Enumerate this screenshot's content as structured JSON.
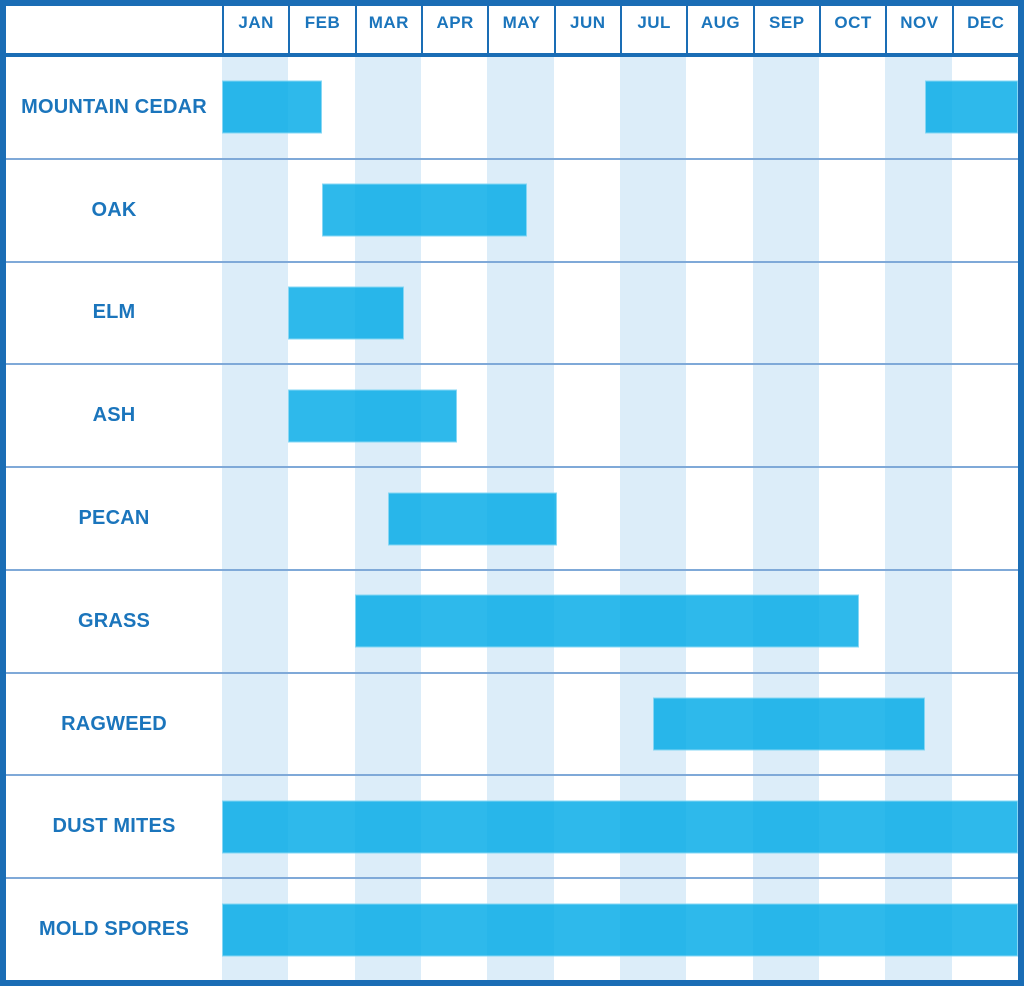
{
  "colors": {
    "border_blue": "#1A6DB5",
    "text_blue": "#1B75BC",
    "divider_blue": "#7FA9D8",
    "stripe_blue": "#DCEDF9",
    "bar_blue": "rgba(0, 169, 230, 0.82)"
  },
  "chart_data": {
    "type": "bar",
    "subtype": "gantt-month-ranges",
    "description": "Allergy season calendar: horizontal bars mark the months each allergen is active. Units are months, 0 = Jan 1, 12 = Dec 31.",
    "months": [
      "JAN",
      "FEB",
      "MAR",
      "APR",
      "MAY",
      "JUN",
      "JUL",
      "AUG",
      "SEP",
      "OCT",
      "NOV",
      "DEC"
    ],
    "x_domain": [
      0,
      12
    ],
    "striped_month_indices": [
      0,
      2,
      4,
      6,
      8,
      10
    ],
    "legend": "none",
    "grid": "alternating month stripes, horizontal row dividers",
    "rows": [
      {
        "label": "MOUNTAIN CEDAR",
        "ranges": [
          [
            0,
            1.5
          ],
          [
            10.6,
            12
          ]
        ],
        "season": "January through mid-February, and mid-November through December"
      },
      {
        "label": "OAK",
        "ranges": [
          [
            1.5,
            4.6
          ]
        ],
        "season": "mid-February through mid-May"
      },
      {
        "label": "ELM",
        "ranges": [
          [
            1.0,
            2.75
          ]
        ],
        "season": "February through late March"
      },
      {
        "label": "ASH",
        "ranges": [
          [
            1.0,
            3.55
          ]
        ],
        "season": "February through mid-April"
      },
      {
        "label": "PECAN",
        "ranges": [
          [
            2.5,
            5.05
          ]
        ],
        "season": "mid-March through May"
      },
      {
        "label": "GRASS",
        "ranges": [
          [
            2.0,
            9.6
          ]
        ],
        "season": "March through mid-October"
      },
      {
        "label": "RAGWEED",
        "ranges": [
          [
            6.5,
            10.6
          ]
        ],
        "season": "mid-July through mid-November"
      },
      {
        "label": "DUST MITES",
        "ranges": [
          [
            0,
            12
          ]
        ],
        "season": "all year"
      },
      {
        "label": "MOLD SPORES",
        "ranges": [
          [
            0,
            12
          ]
        ],
        "season": "all year"
      }
    ]
  }
}
